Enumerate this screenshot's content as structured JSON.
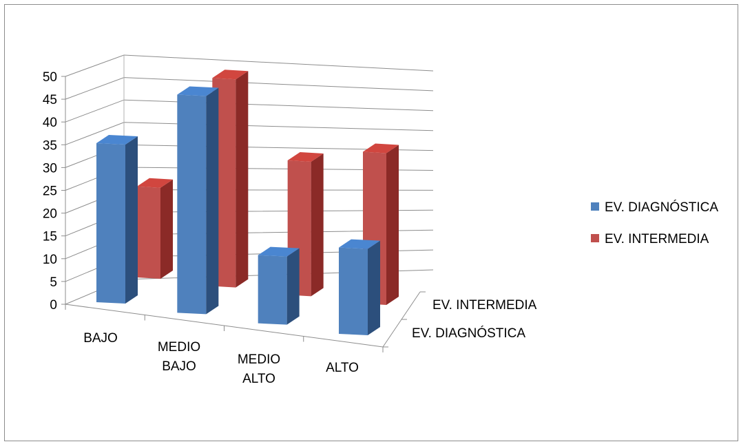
{
  "chart_data": {
    "type": "bar",
    "variant": "3d-column",
    "categories": [
      "BAJO",
      "MEDIO BAJO",
      "MEDIO ALTO",
      "ALTO"
    ],
    "category_lines": [
      [
        "BAJO"
      ],
      [
        "MEDIO",
        "BAJO"
      ],
      [
        "MEDIO",
        "ALTO"
      ],
      [
        "ALTO"
      ]
    ],
    "series": [
      {
        "name": "EV. DIAGNÓSTICA",
        "values": [
          35,
          48,
          15,
          19
        ],
        "color": "#4F81BD",
        "top_color": "#4a86d1",
        "side_color": "#2c4f7c"
      },
      {
        "name": "EV. INTERMEDIA",
        "values": [
          21,
          48,
          31,
          35
        ],
        "color": "#C0504D",
        "top_color": "#d1463f",
        "side_color": "#8b2a27"
      }
    ],
    "depth_labels": [
      "EV. INTERMEDIA",
      "EV. DIAGNÓSTICA"
    ],
    "y_ticks": [
      "0",
      "5",
      "10",
      "15",
      "20",
      "25",
      "30",
      "35",
      "40",
      "45",
      "50"
    ],
    "ylim": [
      0,
      50
    ],
    "grid": true,
    "legend_position": "right",
    "title": "",
    "xlabel": "",
    "ylabel": ""
  }
}
